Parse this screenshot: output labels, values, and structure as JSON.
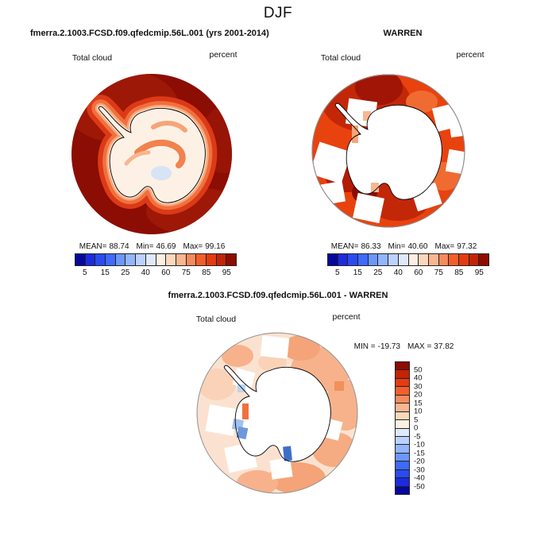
{
  "season_title": "DJF",
  "labels": {
    "variable": "Total cloud",
    "units": "percent",
    "mean_label": "MEAN=",
    "min_label": "Min=",
    "max_label": "Max=",
    "diff_min_label": "MIN =",
    "diff_max_label": "MAX ="
  },
  "panels": {
    "model": {
      "title": "fmerra.2.1003.FCSD.f09.qfedcmip.56L.001 (yrs 2001-2014)",
      "variable": "Total cloud",
      "units": "percent",
      "stats": {
        "mean": "88.74",
        "min": "46.69",
        "max": "99.16"
      },
      "colorbar_ticks": [
        "5",
        "15",
        "25",
        "40",
        "60",
        "75",
        "85",
        "95"
      ]
    },
    "obs": {
      "title": "WARREN",
      "variable": "Total cloud",
      "units": "percent",
      "stats": {
        "mean": "86.33",
        "min": "40.60",
        "max": "97.32"
      },
      "colorbar_ticks": [
        "5",
        "15",
        "25",
        "40",
        "60",
        "75",
        "85",
        "95"
      ]
    },
    "diff": {
      "title": "fmerra.2.1003.FCSD.f09.qfedcmip.56L.001 - WARREN",
      "variable": "Total cloud",
      "units": "percent",
      "stats": {
        "min": "-19.73",
        "max": "37.82"
      },
      "colorbar_ticks": [
        "50",
        "40",
        "30",
        "20",
        "15",
        "10",
        "5",
        "0",
        "-5",
        "-10",
        "-15",
        "-20",
        "-30",
        "-40",
        "-50"
      ]
    }
  },
  "colors": {
    "palette": [
      "#06089C",
      "#1D2BDC",
      "#2A4BF2",
      "#3E6AFD",
      "#6B97FD",
      "#93B5FE",
      "#BCD2FE",
      "#DFE9FC",
      "#FDEFE2",
      "#FBD7BC",
      "#F8B691",
      "#F68A5C",
      "#F15F2C",
      "#E33C12",
      "#C22405",
      "#8E0C00"
    ],
    "model_ocean": "#8B0D04",
    "obs_ocean": "#E8420F",
    "diff_background": "#FBE2D0",
    "missing_data": "#FFFFFF",
    "coastline": "#000000"
  },
  "chart_data": [
    {
      "type": "heatmap",
      "subtype": "filled-contour-map",
      "projection": "south-polar-stereographic",
      "region": "Antarctica",
      "season": "DJF",
      "title": "fmerra.2.1003.FCSD.f09.qfedcmip.56L.001 (yrs 2001-2014)",
      "variable": "Total cloud",
      "units": "percent",
      "stats": {
        "mean": 88.74,
        "min": 46.69,
        "max": 99.16
      },
      "contour_levels": [
        5,
        10,
        15,
        20,
        25,
        30,
        40,
        50,
        60,
        70,
        75,
        80,
        85,
        90,
        95
      ],
      "legend_ticks": [
        5,
        15,
        25,
        40,
        60,
        75,
        85,
        95
      ],
      "legend_position": "below",
      "notes": "ocean mostly in highest bin (>95%), continent interior 40-60%"
    },
    {
      "type": "heatmap",
      "subtype": "filled-contour-map",
      "projection": "south-polar-stereographic",
      "region": "Antarctica",
      "season": "DJF",
      "title": "WARREN",
      "variable": "Total cloud",
      "units": "percent",
      "stats": {
        "mean": 86.33,
        "min": 40.6,
        "max": 97.32
      },
      "contour_levels": [
        5,
        10,
        15,
        20,
        25,
        30,
        40,
        50,
        60,
        70,
        75,
        80,
        85,
        90,
        95
      ],
      "legend_ticks": [
        5,
        15,
        25,
        40,
        60,
        75,
        85,
        95
      ],
      "legend_position": "below",
      "notes": "blocky observational data 80-95% over ocean, white = missing data over continent and patches"
    },
    {
      "type": "heatmap",
      "subtype": "difference-map",
      "projection": "south-polar-stereographic",
      "region": "Antarctica",
      "season": "DJF",
      "title": "fmerra.2.1003.FCSD.f09.qfedcmip.56L.001 - WARREN",
      "variable": "Total cloud",
      "units": "percent",
      "stats": {
        "min": -19.73,
        "max": 37.82
      },
      "contour_levels": [
        -50,
        -40,
        -30,
        -20,
        -15,
        -10,
        -5,
        0,
        5,
        10,
        15,
        20,
        30,
        40,
        50
      ],
      "legend_ticks": [
        50,
        40,
        30,
        20,
        15,
        10,
        5,
        0,
        -5,
        -10,
        -15,
        -20,
        -30,
        -40,
        -50
      ],
      "legend_position": "right-vertical",
      "notes": "mostly +0 to +15 over ocean, small negative (blue) coastal patches"
    }
  ]
}
